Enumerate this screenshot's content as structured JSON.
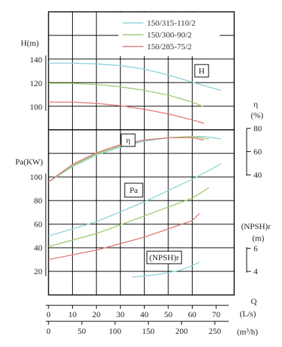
{
  "chart_data": {
    "type": "line",
    "legend": {
      "placement": "top-right"
    },
    "series": [
      {
        "name": "150/315-110/2",
        "color": "#8fd3d8"
      },
      {
        "name": "150/300-90/2",
        "color": "#9ccc6e"
      },
      {
        "name": "150/285-75/2",
        "color": "#e07878"
      }
    ],
    "x_axes": [
      {
        "title": "Q",
        "unit": "(L/s)",
        "range": [
          0,
          75
        ],
        "ticks": [
          "0",
          "10",
          "20",
          "30",
          "40",
          "50",
          "60",
          "70"
        ]
      },
      {
        "title": "",
        "unit": "(m³/h)",
        "range": [
          0,
          270
        ],
        "ticks": [
          "0",
          "50",
          "100",
          "150",
          "200",
          "250"
        ]
      }
    ],
    "panels": {
      "head": {
        "box_label": "H",
        "axis_title": "H(m)",
        "ylim": [
          80,
          140
        ],
        "ticks": [
          "100",
          "120",
          "140"
        ],
        "curves": [
          [
            [
              0,
              137
            ],
            [
              10,
              137
            ],
            [
              20,
              136.5
            ],
            [
              30,
              135
            ],
            [
              40,
              132
            ],
            [
              50,
              127
            ],
            [
              60,
              121
            ],
            [
              65,
              118
            ],
            [
              72,
              114
            ]
          ],
          [
            [
              0,
              120
            ],
            [
              10,
              120
            ],
            [
              20,
              119
            ],
            [
              30,
              117
            ],
            [
              40,
              114
            ],
            [
              50,
              110
            ],
            [
              60,
              104
            ],
            [
              65,
              100
            ]
          ],
          [
            [
              0,
              104
            ],
            [
              10,
              104
            ],
            [
              20,
              103
            ],
            [
              30,
              101
            ],
            [
              40,
              98
            ],
            [
              50,
              94
            ],
            [
              60,
              89
            ],
            [
              65,
              86
            ]
          ]
        ]
      },
      "efficiency": {
        "box_label": "η",
        "axis_title": "η",
        "unit": "(%)",
        "ylim": [
          40,
          80
        ],
        "ticks": [
          "40",
          "60",
          "80"
        ],
        "curves": [
          [
            [
              0,
              34
            ],
            [
              10,
              47
            ],
            [
              20,
              57
            ],
            [
              30,
              64
            ],
            [
              40,
              69
            ],
            [
              50,
              72
            ],
            [
              60,
              73
            ],
            [
              65,
              73
            ],
            [
              72,
              71
            ]
          ],
          [
            [
              0,
              34
            ],
            [
              10,
              48
            ],
            [
              20,
              58
            ],
            [
              30,
              65
            ],
            [
              40,
              70
            ],
            [
              50,
              72
            ],
            [
              60,
              73
            ],
            [
              67,
              71
            ]
          ],
          [
            [
              0,
              34
            ],
            [
              10,
              49
            ],
            [
              20,
              59
            ],
            [
              30,
              66
            ],
            [
              40,
              70
            ],
            [
              50,
              72
            ],
            [
              60,
              72
            ],
            [
              65,
              70
            ]
          ]
        ]
      },
      "power": {
        "box_label": "Pa",
        "axis_title": "Pa(KW)",
        "ylim": [
          10,
          120
        ],
        "ticks": [
          "20",
          "40",
          "60",
          "80",
          "100"
        ],
        "curves": [
          [
            [
              0,
              50
            ],
            [
              20,
              62
            ],
            [
              40,
              79
            ],
            [
              60,
              98
            ],
            [
              72,
              111
            ]
          ],
          [
            [
              0,
              41
            ],
            [
              20,
              52
            ],
            [
              40,
              67
            ],
            [
              60,
              82
            ],
            [
              67,
              91
            ]
          ],
          [
            [
              0,
              30
            ],
            [
              20,
              38
            ],
            [
              40,
              49
            ],
            [
              60,
              63
            ],
            [
              63,
              69
            ]
          ]
        ]
      },
      "npsh": {
        "box_label": "(NPSH)r",
        "axis_title": "(NPSH)r",
        "unit": "(m)",
        "ylim": [
          3,
          7
        ],
        "ticks": [
          "4",
          "6"
        ],
        "curves": [
          [
            [
              35,
              3.5
            ],
            [
              45,
              3.7
            ],
            [
              55,
              4.1
            ],
            [
              60,
              4.5
            ],
            [
              63,
              4.8
            ]
          ]
        ]
      }
    },
    "grid": true
  }
}
